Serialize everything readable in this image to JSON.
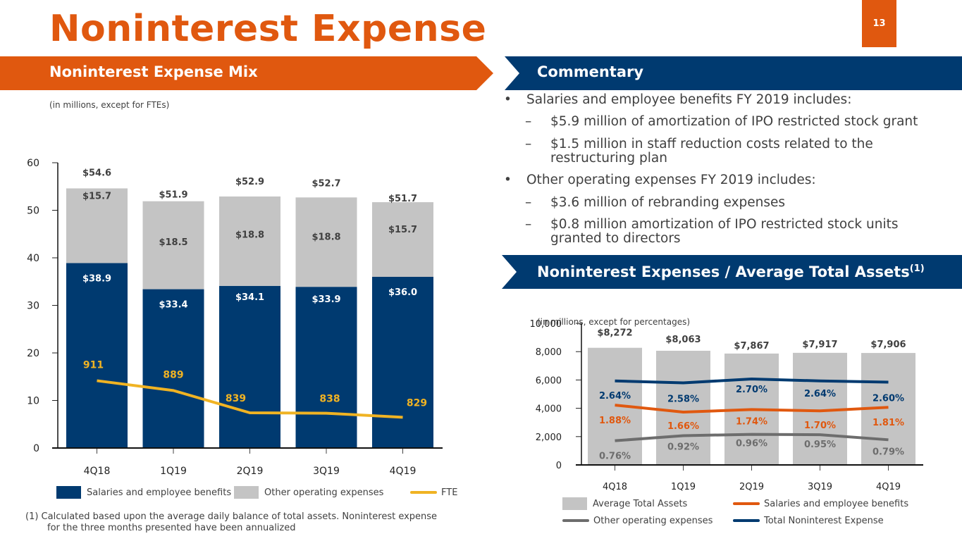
{
  "page": {
    "title": "Noninterest Expense",
    "page_number": "13",
    "colors": {
      "orange": "#e0580f",
      "navy": "#003a70",
      "gray_bar": "#c4c4c4",
      "gold": "#f0b323",
      "dark_gray_line": "#6d6d6d",
      "text": "#404040"
    }
  },
  "mix_section": {
    "banner": "Noninterest Expense Mix",
    "note": "(in millions, except for FTEs)"
  },
  "commentary": {
    "banner": "Commentary",
    "items": [
      {
        "type": "bullet",
        "text": "Salaries and employee benefits FY 2019 includes:"
      },
      {
        "type": "sub",
        "text": "$5.9 million of amortization of IPO restricted stock grant"
      },
      {
        "type": "sub",
        "text": "$1.5 million in staff reduction costs related to the",
        "cont": "restructuring plan"
      },
      {
        "type": "bullet",
        "text": "Other operating expenses FY 2019 includes:"
      },
      {
        "type": "sub",
        "text": "$3.6 million of rebranding expenses"
      },
      {
        "type": "sub",
        "text": "$0.8 million amortization of IPO restricted stock units",
        "cont": "granted to directors"
      }
    ],
    "bullet_glyph": "•",
    "dash_glyph": "–"
  },
  "ratio_section": {
    "banner": "Noninterest Expenses / Average Total Assets",
    "banner_sup": "(1)",
    "note": "(in millions, except for percentages)"
  },
  "footnote": {
    "line1": "(1) Calculated based upon the average daily balance of total assets. Noninterest expense",
    "line2": "for the three months presented have been annualized"
  },
  "chart_data": [
    {
      "type": "bar",
      "stacked": true,
      "title": "Noninterest Expense Mix",
      "categories": [
        "4Q18",
        "1Q19",
        "2Q19",
        "3Q19",
        "4Q19"
      ],
      "ylim": [
        0,
        60
      ],
      "yticks": [
        0,
        10,
        20,
        30,
        40,
        50,
        60
      ],
      "series": [
        {
          "name": "Salaries and employee benefits",
          "values": [
            38.9,
            33.4,
            34.1,
            33.9,
            36.0
          ],
          "labels": [
            "$38.9",
            "$33.4",
            "$34.1",
            "$33.9",
            "$36.0"
          ],
          "color": "#003a70"
        },
        {
          "name": "Other operating expenses",
          "values": [
            15.7,
            18.5,
            18.8,
            18.8,
            15.7
          ],
          "labels": [
            "$15.7",
            "$18.5",
            "$18.8",
            "$18.8",
            "$15.7"
          ],
          "color": "#c4c4c4"
        }
      ],
      "totals": {
        "values": [
          54.6,
          51.9,
          52.9,
          52.7,
          51.7
        ],
        "labels": [
          "$54.6",
          "$51.9",
          "$52.9",
          "$52.7",
          "$51.7"
        ]
      },
      "line_series": {
        "name": "FTE",
        "type": "line",
        "values": [
          911,
          889,
          839,
          838,
          829
        ],
        "labels": [
          "911",
          "889",
          "839",
          "838",
          "829"
        ],
        "color": "#f0b323",
        "secondary_ylim": [
          760,
          1400
        ]
      },
      "legend": [
        {
          "label": "Salaries and employee benefits",
          "kind": "box",
          "color": "#003a70"
        },
        {
          "label": "Other operating expenses",
          "kind": "box",
          "color": "#c4c4c4"
        },
        {
          "label": "FTE",
          "kind": "line",
          "color": "#f0b323"
        }
      ],
      "legend_position": "bottom"
    },
    {
      "type": "bar",
      "title": "Noninterest Expenses / Average Total Assets",
      "categories": [
        "4Q18",
        "1Q19",
        "2Q19",
        "3Q19",
        "4Q19"
      ],
      "ylim": [
        0,
        10000
      ],
      "yticks": [
        0,
        2000,
        4000,
        6000,
        8000,
        10000
      ],
      "ytick_labels": [
        "0",
        "2,000",
        "4,000",
        "6,000",
        "8,000",
        "10,000"
      ],
      "bars": {
        "name": "Average Total Assets",
        "values": [
          8272,
          8063,
          7867,
          7917,
          7906
        ],
        "labels": [
          "$8,272",
          "$8,063",
          "$7,867",
          "$7,917",
          "$7,906"
        ],
        "color": "#c4c4c4"
      },
      "line_series": [
        {
          "name": "Total Noninterest Expense",
          "values": [
            2.64,
            2.58,
            2.7,
            2.64,
            2.6
          ],
          "labels": [
            "2.64%",
            "2.58%",
            "2.70%",
            "2.64%",
            "2.60%"
          ],
          "color": "#003a70"
        },
        {
          "name": "Salaries and employee benefits",
          "values": [
            1.88,
            1.66,
            1.74,
            1.7,
            1.81
          ],
          "labels": [
            "1.88%",
            "1.66%",
            "1.74%",
            "1.70%",
            "1.81%"
          ],
          "color": "#e0580f"
        },
        {
          "name": "Other operating expenses",
          "values": [
            0.76,
            0.92,
            0.96,
            0.95,
            0.79
          ],
          "labels": [
            "0.76%",
            "0.92%",
            "0.96%",
            "0.95%",
            "0.79%"
          ],
          "color": "#6d6d6d"
        }
      ],
      "secondary_ylim": [
        0,
        4.45
      ],
      "legend": [
        {
          "label": "Average Total Assets",
          "kind": "box",
          "color": "#c4c4c4"
        },
        {
          "label": "Salaries and employee benefits",
          "kind": "line",
          "color": "#e0580f"
        },
        {
          "label": "Other operating expenses",
          "kind": "line",
          "color": "#6d6d6d"
        },
        {
          "label": "Total Noninterest Expense",
          "kind": "line",
          "color": "#003a70"
        }
      ],
      "legend_position": "bottom"
    }
  ]
}
